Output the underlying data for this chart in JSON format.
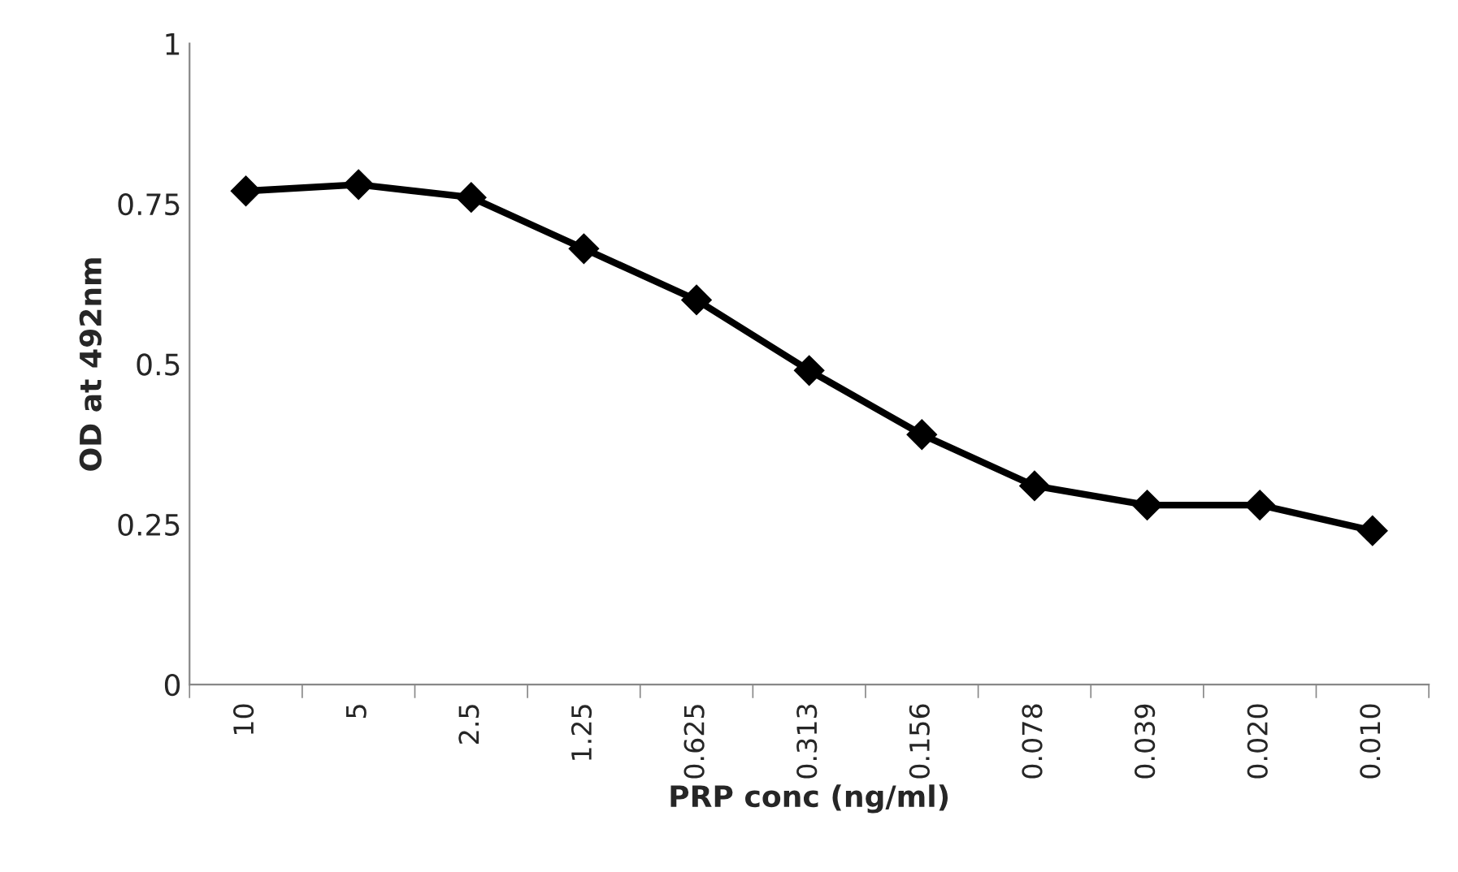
{
  "chart_data": {
    "type": "line",
    "xlabel": "PRP conc (ng/ml)",
    "ylabel": "OD at 492nm",
    "categories": [
      "10",
      "5",
      "2.5",
      "1.25",
      "0.625",
      "0.313",
      "0.156",
      "0.078",
      "0.039",
      "0.020",
      "0.010"
    ],
    "series": [
      {
        "color": "#000000",
        "values": [
          0.77,
          0.78,
          0.76,
          0.68,
          0.6,
          0.49,
          0.39,
          0.31,
          0.28,
          0.28,
          0.24
        ]
      }
    ],
    "ylim": [
      0,
      1
    ],
    "yticks": [
      0,
      {
        "value": 0.25,
        "label": "0.25"
      },
      {
        "value": 0.5,
        "label": "0.5"
      },
      {
        "value": 0.75,
        "label": "0.75"
      },
      1
    ],
    "marker": "diamond",
    "line_style": "solid",
    "grid": false,
    "legend": false
  }
}
